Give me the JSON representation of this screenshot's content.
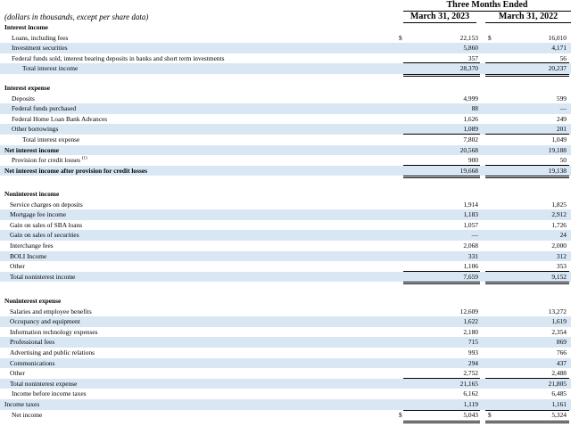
{
  "header": {
    "period": "Three Months Ended",
    "note": "(dollars in thousands, except per share data)",
    "col1": "March 31, 2023",
    "col2": "March 31, 2022"
  },
  "rows": [
    {
      "id": "r0",
      "label": "Interest income",
      "v1": "",
      "v2": "",
      "bold": true
    },
    {
      "id": "r1",
      "label": "Loans, including fees",
      "v1": "22,153",
      "v2": "16,010",
      "indent": 1,
      "cur": true
    },
    {
      "id": "r2",
      "label": "Investment securities",
      "v1": "5,860",
      "v2": "4,171",
      "indent": 1
    },
    {
      "id": "r3",
      "label": "Federal funds sold, interest bearing deposits in banks and short term investments",
      "v1": "357",
      "v2": "56",
      "indent": 1
    },
    {
      "id": "r4",
      "label": "Total interest income",
      "v1": "28,370",
      "v2": "20,237",
      "indent": 2
    },
    {
      "id": "r5",
      "label": "Interest expense",
      "v1": "",
      "v2": "",
      "bold": true
    },
    {
      "id": "r6",
      "label": "Deposits",
      "v1": "4,999",
      "v2": "599",
      "indent": 1
    },
    {
      "id": "r7",
      "label": "Federal funds purchased",
      "v1": "88",
      "v2": "—",
      "indent": 1
    },
    {
      "id": "r8",
      "label": "Federal Home Loan Bank Advances",
      "v1": "1,626",
      "v2": "249",
      "indent": 1
    },
    {
      "id": "r9",
      "label": "Other borrowings",
      "v1": "1,089",
      "v2": "201",
      "indent": 1
    },
    {
      "id": "r10",
      "label": "Total interest expense",
      "v1": "7,802",
      "v2": "1,049",
      "indent": 2
    },
    {
      "id": "r11",
      "label": "Net interest income",
      "v1": "20,568",
      "v2": "19,188",
      "bold": true
    },
    {
      "id": "r12",
      "label": "Provision for credit losses",
      "sup": "(1)",
      "v1": "900",
      "v2": "50",
      "indent": 1
    },
    {
      "id": "r13",
      "label": "Net interest income after provision for credit losses",
      "v1": "19,668",
      "v2": "19,138",
      "bold": true
    },
    {
      "id": "r14",
      "label": "Noninterest income",
      "v1": "",
      "v2": "",
      "bold": true
    },
    {
      "id": "r15",
      "label": "Service charges on deposits",
      "v1": "1,914",
      "v2": "1,825",
      "indent": 1
    },
    {
      "id": "r16",
      "label": "Mortgage fee income",
      "v1": "1,183",
      "v2": "2,912",
      "indent": 1
    },
    {
      "id": "r17",
      "label": "Gain on sales of SBA loans",
      "v1": "1,057",
      "v2": "1,726",
      "indent": 1
    },
    {
      "id": "r18",
      "label": "Gain on sales of securities",
      "v1": "—",
      "v2": "24",
      "indent": 1
    },
    {
      "id": "r19",
      "label": "Interchange fees",
      "v1": "2,068",
      "v2": "2,000",
      "indent": 1
    },
    {
      "id": "r20",
      "label": "BOLI Income",
      "v1": "331",
      "v2": "312",
      "indent": 1
    },
    {
      "id": "r21",
      "label": "Other",
      "v1": "1,106",
      "v2": "353",
      "indent": 1
    },
    {
      "id": "r22",
      "label": "Total noninterest income",
      "v1": "7,659",
      "v2": "9,152",
      "indent": 1
    },
    {
      "id": "r23",
      "label": "Noninterest expense",
      "v1": "",
      "v2": "",
      "bold": true
    },
    {
      "id": "r24",
      "label": "Salaries and employee benefits",
      "v1": "12,609",
      "v2": "13,272",
      "indent": 1
    },
    {
      "id": "r25",
      "label": "Occupancy and equipment",
      "v1": "1,622",
      "v2": "1,619",
      "indent": 1
    },
    {
      "id": "r26",
      "label": "Information technology expenses",
      "v1": "2,180",
      "v2": "2,354",
      "indent": 1
    },
    {
      "id": "r27",
      "label": "Professional fees",
      "v1": "715",
      "v2": "869",
      "indent": 1
    },
    {
      "id": "r28",
      "label": "Advertising and public relations",
      "v1": "993",
      "v2": "766",
      "indent": 1
    },
    {
      "id": "r29",
      "label": "Communications",
      "v1": "294",
      "v2": "437",
      "indent": 1
    },
    {
      "id": "r30",
      "label": "Other",
      "v1": "2,752",
      "v2": "2,488",
      "indent": 1
    },
    {
      "id": "r31",
      "label": "Total noninterest expense",
      "v1": "21,165",
      "v2": "21,805",
      "indent": 1
    },
    {
      "id": "r32",
      "label": "Income before income taxes",
      "v1": "6,162",
      "v2": "6,485",
      "indent": 2
    },
    {
      "id": "r33",
      "label": "Income taxes",
      "v1": "1,119",
      "v2": "1,161",
      "indent": 0
    },
    {
      "id": "r34",
      "label": "Net income",
      "v1": "5,043",
      "v2": "5,324",
      "indent": 1,
      "cur": true
    }
  ],
  "currency_symbol": "$"
}
